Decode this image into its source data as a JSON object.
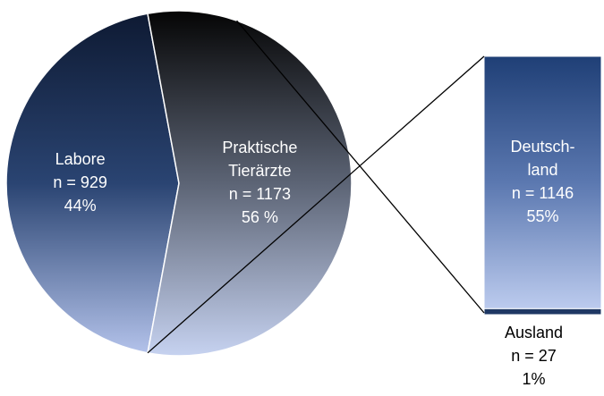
{
  "chart_data": {
    "type": "pie-of-bar",
    "categories": [
      "Labore",
      "Praktische\nTierärzte"
    ],
    "values": [
      929,
      1173
    ],
    "value_labels": [
      "n = 929",
      "n = 1173"
    ],
    "percents": [
      44,
      56
    ],
    "percent_labels": [
      "44%",
      "56 %"
    ],
    "bar": {
      "categories": [
        "Deutsch-\nland",
        "Ausland"
      ],
      "values": [
        1146,
        27
      ],
      "value_labels": [
        "n = 1146",
        "n = 27"
      ],
      "percents": [
        55,
        1
      ],
      "percent_labels": [
        "55%",
        "1%"
      ]
    }
  }
}
